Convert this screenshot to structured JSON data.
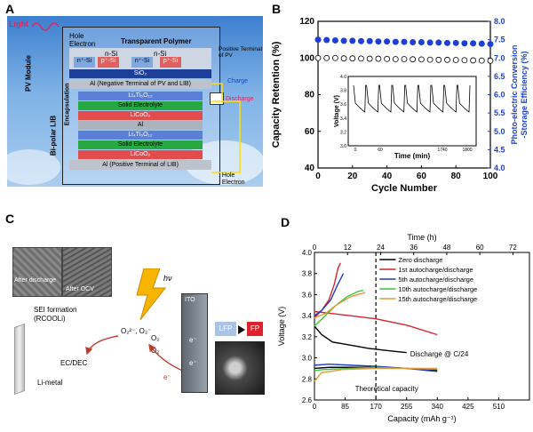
{
  "panels": {
    "A": {
      "letter": "A",
      "labels": {
        "light": "Light",
        "hole": "Hole",
        "electron": "Electron",
        "transparent_polymer": "Transparent Polymer",
        "n_si_1": "n-Si",
        "n_si_2": "n-Si",
        "p_si": "p⁺-Si",
        "n_plus_si": "n⁺-Si",
        "sio2": "SiO₂",
        "pv_module": "PV Module",
        "positive_terminal_pv": "Positive Terminal of PV",
        "charge": "Charge",
        "discharge": "Discharge",
        "al_neg": "Al (Negative Terminal of PV and LIB)",
        "lto1": "Li₄Ti₅O₁₂",
        "se1": "Solid Electrolyte",
        "lco1": "LiCoO₂",
        "al_mid": "Al",
        "lto2": "Li₄Ti₅O₁₂",
        "se2": "Solid Electrolyte",
        "lco2": "LiCoO₂",
        "al_pos": "Al (Positive Terminal of LIB)",
        "encapsulation": "Encapsulation",
        "bipolar_lib": "Bi-polar LIB",
        "legend_hole": ": Hole",
        "legend_electron": ": Electron"
      },
      "colors": {
        "sky": "#4f8fd0",
        "lto": "#5b7fd6",
        "se": "#27a843",
        "lco": "#e24c4c",
        "al": "#9a9a9a"
      }
    },
    "B": {
      "letter": "B",
      "chart_data": {
        "type": "scatter",
        "xlabel": "Cycle Number",
        "ylabel": "Capacity Retention (%)",
        "y2label": "Photo-electric Conversion -Storage Efficiency (%)",
        "xlim": [
          0,
          100
        ],
        "ylim": [
          40,
          120
        ],
        "y2lim": [
          4.0,
          8.0
        ],
        "xticks": [
          "0",
          "20",
          "40",
          "60",
          "80",
          "100"
        ],
        "yticks": [
          "40",
          "60",
          "80",
          "100",
          "120"
        ],
        "y2ticks": [
          "4.0",
          "4.5",
          "5.0",
          "5.5",
          "6.0",
          "6.5",
          "7.0",
          "7.5",
          "8.0"
        ],
        "series": [
          {
            "marker": "open-circle",
            "axis": "left",
            "color": "#000000",
            "x": [
              0,
              5,
              10,
              15,
              20,
              25,
              30,
              35,
              40,
              45,
              50,
              55,
              60,
              65,
              70,
              75,
              80,
              85,
              90,
              95,
              100
            ],
            "y": [
              100,
              100,
              100,
              99.8,
              99.8,
              99.7,
              99.6,
              99.6,
              99.5,
              99.4,
              99.4,
              99.3,
              99.2,
              99.1,
              99.0,
              99.0,
              98.9,
              98.8,
              98.7,
              98.6,
              98.5
            ]
          },
          {
            "marker": "filled-circle",
            "axis": "right",
            "color": "#1c3fd6",
            "x": [
              0,
              5,
              10,
              15,
              20,
              25,
              30,
              35,
              40,
              45,
              50,
              55,
              60,
              65,
              70,
              75,
              80,
              85,
              90,
              95,
              100
            ],
            "y": [
              7.5,
              7.49,
              7.48,
              7.47,
              7.47,
              7.46,
              7.46,
              7.45,
              7.45,
              7.44,
              7.44,
              7.43,
              7.43,
              7.42,
              7.42,
              7.41,
              7.41,
              7.4,
              7.4,
              7.39,
              7.38
            ]
          }
        ],
        "inset": {
          "xlabel": "Time (min)",
          "ylabel": "Voltage (V)",
          "xticks": [
            "0",
            "60",
            "1740",
            "1800"
          ],
          "yticks": [
            "3.0",
            "3.2",
            "3.4",
            "3.6",
            "3.8",
            "4.0"
          ],
          "ylim": [
            3.0,
            4.0
          ]
        }
      }
    },
    "C": {
      "letter": "C",
      "labels": {
        "after_discharge": "After discharge",
        "after_ocv": "After OCV",
        "sei": "SEI formation (RCOOLi)",
        "o2_species": "O₂²⁻, O₂⁻",
        "o2_a": "O₂",
        "o2_b": "O₂",
        "ec_dec": "EC/DEC",
        "li_metal": "Li-metal",
        "hv": "hν",
        "ito": "ITO",
        "lfp": "LFP",
        "fp": "FP",
        "e1": "e⁻",
        "e2": "e⁻",
        "e3": "e⁻"
      }
    },
    "D": {
      "letter": "D",
      "chart_data": {
        "type": "line",
        "xlabel": "Capacity (mAh g⁻¹)",
        "ylabel": "Voltage (V)",
        "x2label": "Time (h)",
        "xlim": [
          0,
          595
        ],
        "ylim": [
          2.6,
          4.0
        ],
        "xticks": [
          "0",
          "85",
          "170",
          "255",
          "340",
          "425",
          "510"
        ],
        "x2ticks": [
          "0",
          "12",
          "24",
          "36",
          "48",
          "60",
          "72"
        ],
        "yticks": [
          "2.6",
          "2.8",
          "3.0",
          "3.2",
          "3.4",
          "3.6",
          "3.8",
          "4.0"
        ],
        "annotations": {
          "discharge": "Discharge @ C/24",
          "theoretical": "Theoretical capacity",
          "theoretical_x": 170
        },
        "series": [
          {
            "name": "Zero discharge",
            "color": "#000000",
            "x": [
              0,
              20,
              50,
              100,
              150,
              200,
              255
            ],
            "y": [
              3.3,
              3.22,
              3.15,
              3.12,
              3.09,
              3.07,
              3.05
            ]
          },
          {
            "name": "Zero discharge",
            "color": "#000000",
            "x": [
              0,
              40,
              100,
              170,
              255,
              340
            ],
            "y": [
              2.9,
              2.91,
              2.91,
              2.91,
              2.9,
              2.88
            ]
          },
          {
            "name": "1st autocharge/discharge",
            "color": "#d9242b",
            "x": [
              0,
              20,
              40,
              55,
              65,
              72
            ],
            "y": [
              3.38,
              3.45,
              3.55,
              3.7,
              3.85,
              3.9
            ]
          },
          {
            "name": "1st autocharge/discharge",
            "color": "#d9242b",
            "x": [
              0,
              50,
              100,
              170,
              255,
              340
            ],
            "y": [
              3.44,
              3.42,
              3.4,
              3.37,
              3.31,
              3.22
            ]
          },
          {
            "name": "5th autocharge/discharge",
            "color": "#2137c9",
            "x": [
              0,
              20,
              45,
              65,
              80
            ],
            "y": [
              3.4,
              3.45,
              3.55,
              3.7,
              3.8
            ]
          },
          {
            "name": "5th autocharge/discharge",
            "color": "#2137c9",
            "x": [
              0,
              40,
              100,
              170,
              255,
              340
            ],
            "y": [
              2.93,
              2.94,
              2.93,
              2.92,
              2.9,
              2.87
            ]
          },
          {
            "name": "10th autocharge/discharge",
            "color": "#3cc43c",
            "x": [
              0,
              30,
              60,
              90,
              120,
              135
            ],
            "y": [
              3.3,
              3.4,
              3.5,
              3.58,
              3.63,
              3.64
            ]
          },
          {
            "name": "10th autocharge/discharge",
            "color": "#3cc43c",
            "x": [
              0,
              30,
              100,
              170,
              255,
              340
            ],
            "y": [
              2.88,
              2.89,
              2.9,
              2.91,
              2.9,
              2.89
            ]
          },
          {
            "name": "15th autocharge/discharge",
            "color": "#e09a3a",
            "x": [
              0,
              30,
              60,
              100,
              140
            ],
            "y": [
              3.38,
              3.42,
              3.5,
              3.58,
              3.62
            ]
          },
          {
            "name": "15th autocharge/discharge",
            "color": "#e09a3a",
            "x": [
              0,
              20,
              80,
              170,
              255,
              340
            ],
            "y": [
              2.78,
              2.86,
              2.89,
              2.9,
              2.9,
              2.9
            ]
          }
        ],
        "legend": [
          {
            "label": "Zero discharge",
            "color": "#000000"
          },
          {
            "label": "1st autocharge/discharge",
            "color": "#d9242b"
          },
          {
            "label": "5th autocharge/discharge",
            "color": "#2137c9"
          },
          {
            "label": "10th autocharge/discharge",
            "color": "#3cc43c"
          },
          {
            "label": "15th autocharge/discharge",
            "color": "#e09a3a"
          }
        ]
      }
    }
  }
}
